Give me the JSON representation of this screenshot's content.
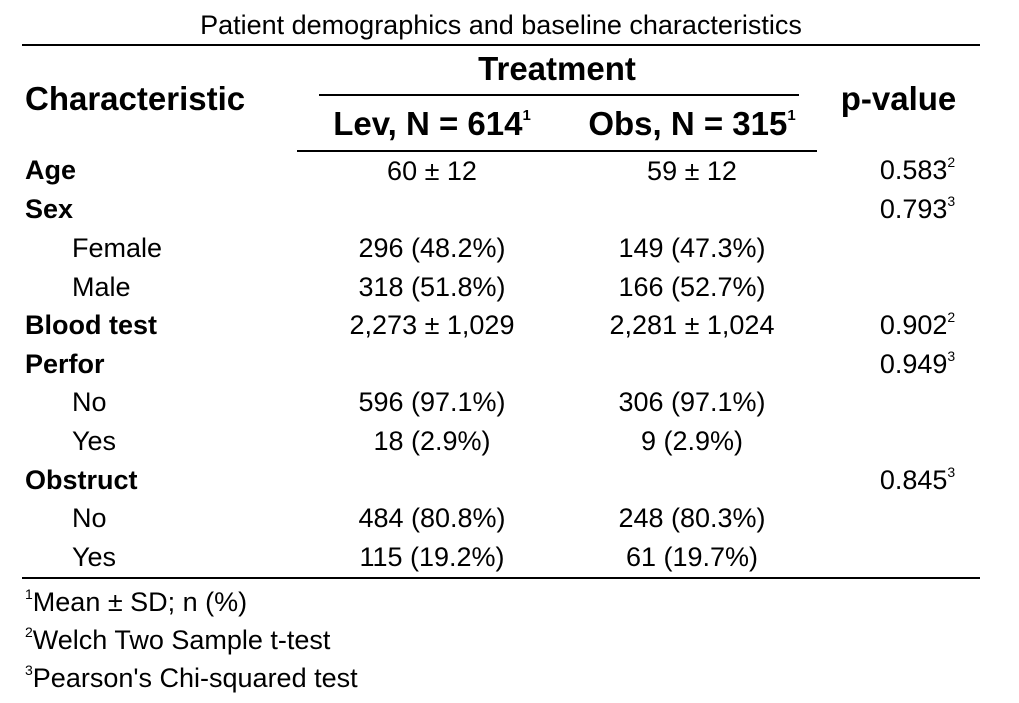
{
  "title": "Patient demographics and baseline characteristics",
  "header": {
    "characteristic": "Characteristic",
    "spanner": "Treatment",
    "p_value": "p-value",
    "arms": [
      {
        "label": "Lev, N = 614",
        "mark": "1"
      },
      {
        "label": "Obs, N = 315",
        "mark": "1"
      }
    ]
  },
  "rows": [
    {
      "label": "Age",
      "type": "variable",
      "lev": "60 ± 12",
      "obs": "59 ± 12",
      "p": "0.583",
      "p_mark": "2"
    },
    {
      "label": "Sex",
      "type": "variable",
      "lev": "",
      "obs": "",
      "p": "0.793",
      "p_mark": "3"
    },
    {
      "label": "Female",
      "type": "level",
      "lev": "296 (48.2%)",
      "obs": "149 (47.3%)",
      "p": "",
      "p_mark": ""
    },
    {
      "label": "Male",
      "type": "level",
      "lev": "318 (51.8%)",
      "obs": "166 (52.7%)",
      "p": "",
      "p_mark": ""
    },
    {
      "label": "Blood test",
      "type": "variable",
      "lev": "2,273 ± 1,029",
      "obs": "2,281 ± 1,024",
      "p": "0.902",
      "p_mark": "2"
    },
    {
      "label": "Perfor",
      "type": "variable",
      "lev": "",
      "obs": "",
      "p": "0.949",
      "p_mark": "3"
    },
    {
      "label": "No",
      "type": "level",
      "lev": "596 (97.1%)",
      "obs": "306 (97.1%)",
      "p": "",
      "p_mark": ""
    },
    {
      "label": "Yes",
      "type": "level",
      "lev": "18 (2.9%)",
      "obs": "9 (2.9%)",
      "p": "",
      "p_mark": ""
    },
    {
      "label": "Obstruct",
      "type": "variable",
      "lev": "",
      "obs": "",
      "p": "0.845",
      "p_mark": "3"
    },
    {
      "label": "No",
      "type": "level",
      "lev": "484 (80.8%)",
      "obs": "248 (80.3%)",
      "p": "",
      "p_mark": ""
    },
    {
      "label": "Yes",
      "type": "level",
      "lev": "115 (19.2%)",
      "obs": "61 (19.7%)",
      "p": "",
      "p_mark": ""
    }
  ],
  "footnotes": [
    {
      "mark": "1",
      "text": "Mean ± SD; n (%)"
    },
    {
      "mark": "2",
      "text": "Welch Two Sample t-test"
    },
    {
      "mark": "3",
      "text": "Pearson's Chi-squared test"
    }
  ]
}
